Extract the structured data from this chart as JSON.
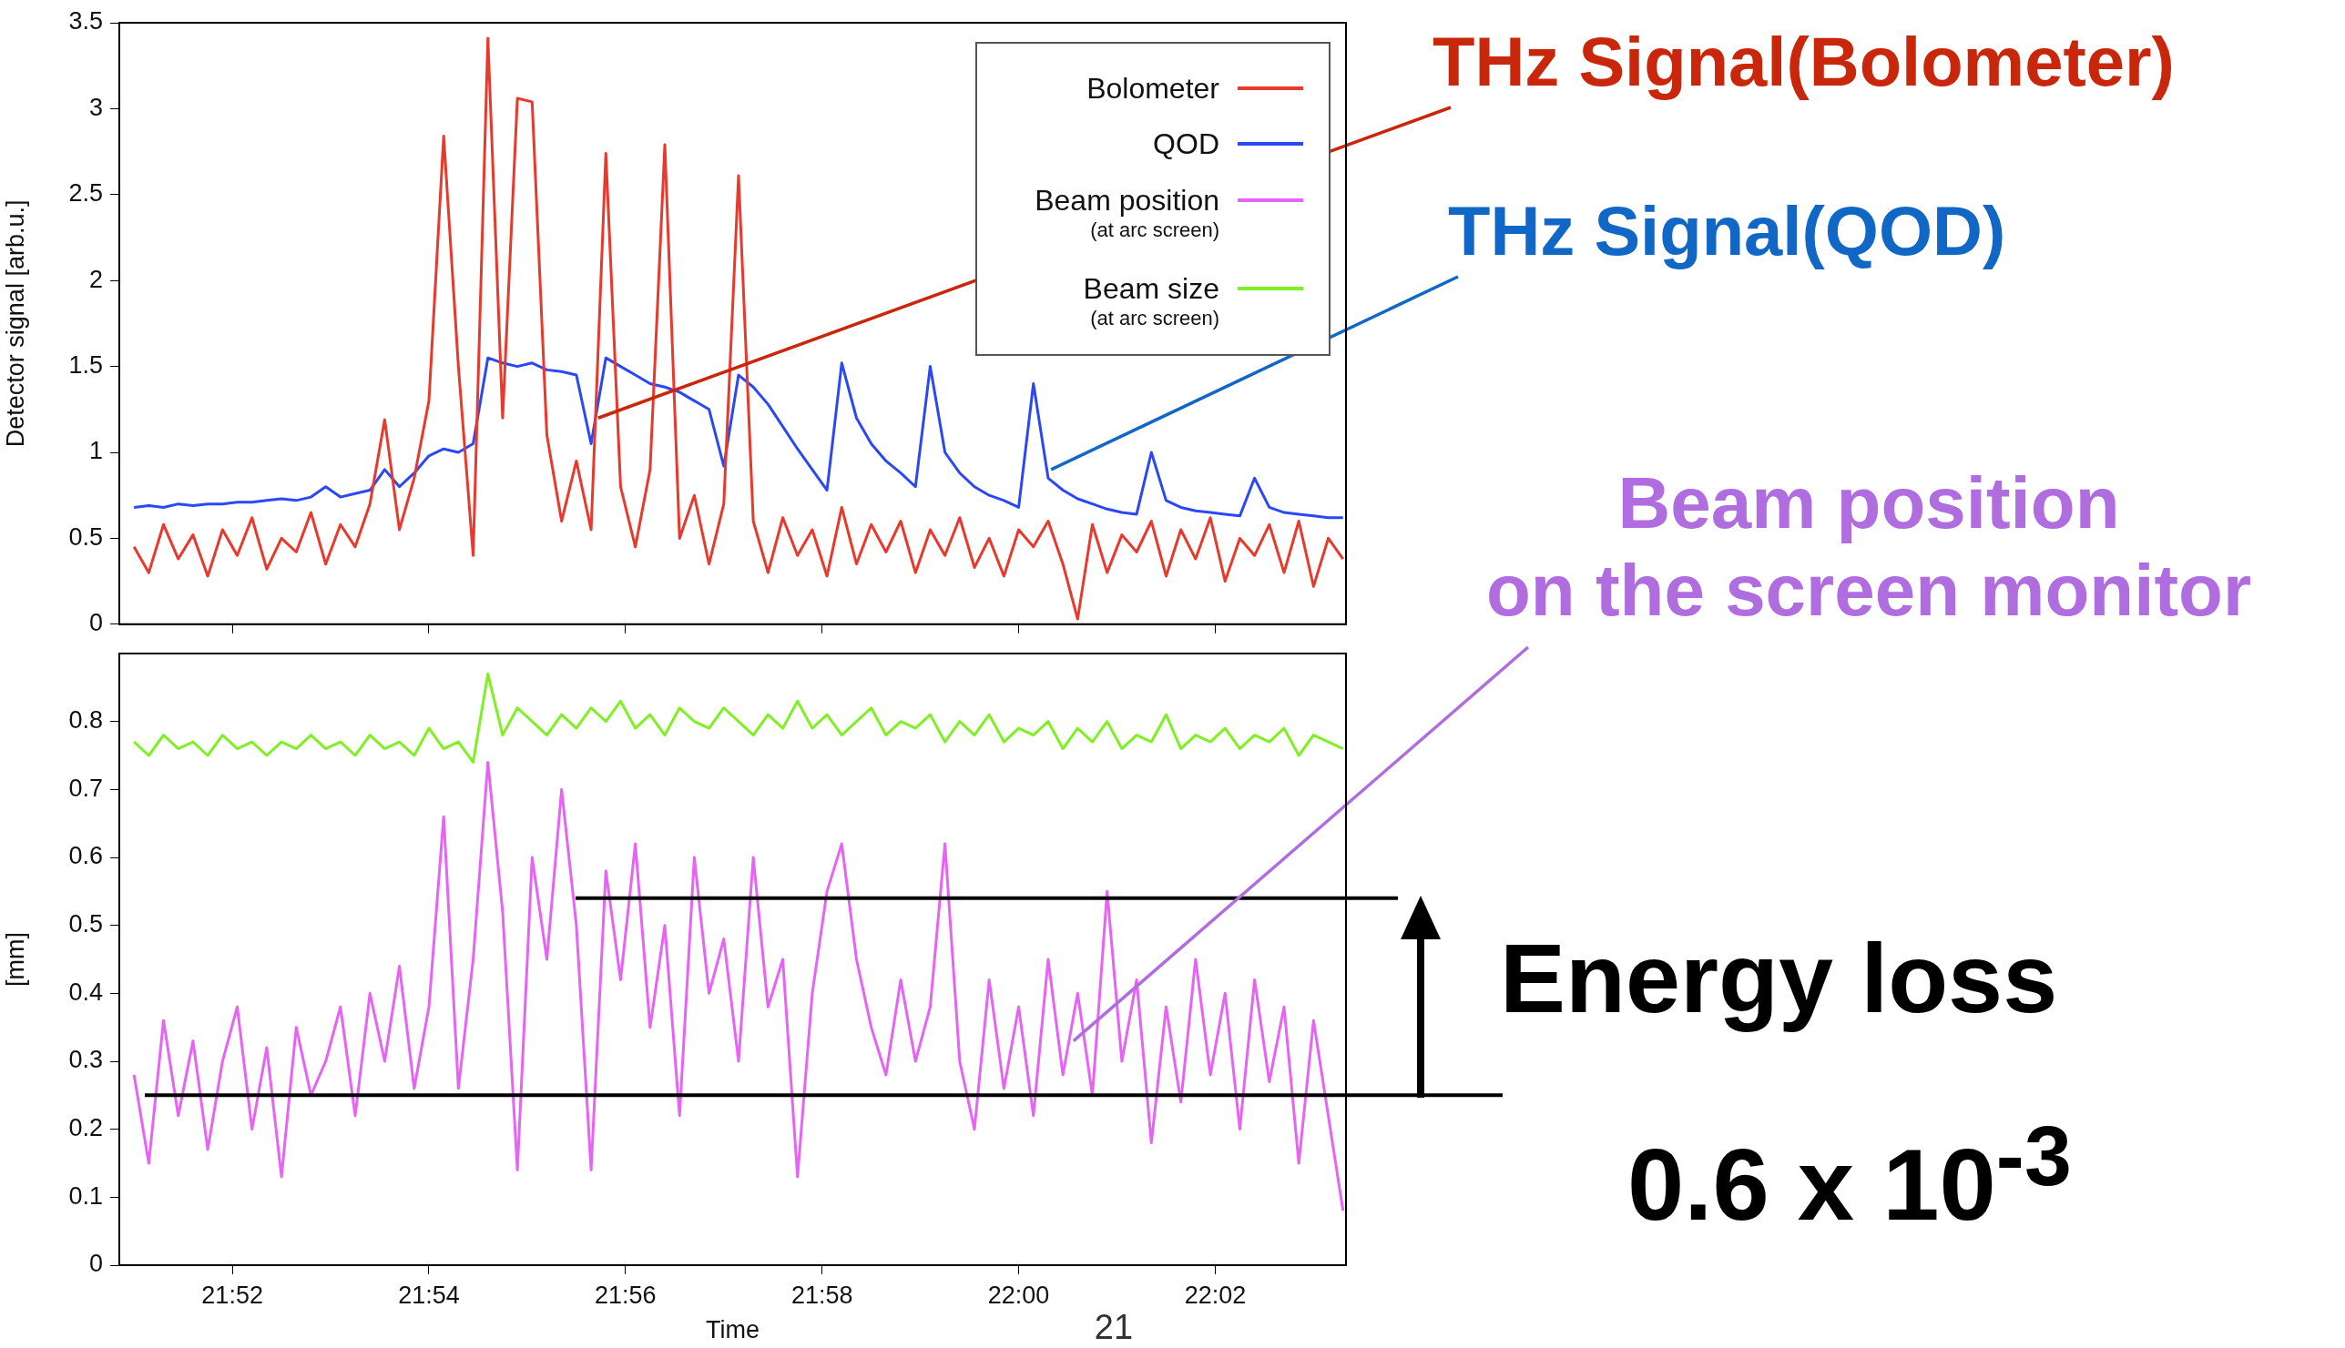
{
  "chart_data": [
    {
      "type": "line",
      "ylabel": "Detector signal [arb.u.]",
      "x": [
        21.85,
        21.8525,
        21.855,
        21.8575,
        21.86,
        21.8625,
        21.865,
        21.8675,
        21.87,
        21.8725,
        21.875,
        21.8775,
        21.88,
        21.8825,
        21.885,
        21.8875,
        21.89,
        21.8925,
        21.895,
        21.8975,
        21.9,
        21.9025,
        21.905,
        21.9075,
        21.91,
        21.9125,
        21.915,
        21.9175,
        21.92,
        21.9225,
        21.925,
        21.9275,
        21.93,
        21.9325,
        21.935,
        21.9375,
        21.94,
        21.9425,
        21.945,
        21.9475,
        21.95,
        21.9525,
        21.955,
        21.9575,
        21.96,
        21.9625,
        21.965,
        21.9675,
        21.97,
        21.9725,
        21.975,
        21.9775,
        21.98,
        21.9825,
        21.985,
        21.9875,
        21.99,
        21.9925,
        21.995,
        21.9975,
        22,
        22.0025,
        22.005,
        22.0075,
        22.01,
        22.0125,
        22.015,
        22.0175,
        22.02,
        22.0225,
        22.025,
        22.0275,
        22.03,
        22.0325,
        22.035,
        22.0375,
        22.04,
        22.0425,
        22.045,
        22.0475,
        22.05,
        22.0525,
        22.055
      ],
      "series": [
        {
          "name": "Bolometer",
          "color": "#e8392c",
          "values": [
            0.45,
            0.3,
            0.58,
            0.38,
            0.52,
            0.28,
            0.55,
            0.4,
            0.62,
            0.32,
            0.5,
            0.42,
            0.65,
            0.35,
            0.58,
            0.45,
            0.7,
            1.19,
            0.55,
            0.85,
            1.3,
            2.84,
            1.5,
            0.4,
            3.41,
            1.2,
            3.06,
            3.04,
            1.1,
            0.6,
            0.95,
            0.55,
            2.74,
            0.8,
            0.45,
            0.9,
            2.79,
            0.5,
            0.75,
            0.35,
            0.7,
            2.61,
            0.6,
            0.3,
            0.62,
            0.4,
            0.55,
            0.28,
            0.68,
            0.35,
            0.58,
            0.42,
            0.6,
            0.3,
            0.55,
            0.4,
            0.62,
            0.33,
            0.5,
            0.28,
            0.55,
            0.45,
            0.6,
            0.35,
            0.03,
            0.58,
            0.3,
            0.52,
            0.42,
            0.6,
            0.28,
            0.55,
            0.38,
            0.62,
            0.25,
            0.5,
            0.4,
            0.58,
            0.3,
            0.6,
            0.22,
            0.5,
            0.38
          ]
        },
        {
          "name": "QOD",
          "color": "#2a48f5",
          "values": [
            0.68,
            0.69,
            0.68,
            0.7,
            0.69,
            0.7,
            0.7,
            0.71,
            0.71,
            0.72,
            0.73,
            0.72,
            0.74,
            0.8,
            0.74,
            0.76,
            0.78,
            0.9,
            0.8,
            0.88,
            0.98,
            1.02,
            1.0,
            1.05,
            1.55,
            1.52,
            1.5,
            1.52,
            1.48,
            1.47,
            1.45,
            1.05,
            1.55,
            1.5,
            1.45,
            1.4,
            1.38,
            1.35,
            1.3,
            1.25,
            0.92,
            1.45,
            1.38,
            1.28,
            1.15,
            1.02,
            0.9,
            0.78,
            1.52,
            1.2,
            1.05,
            0.95,
            0.88,
            0.8,
            1.5,
            1.0,
            0.88,
            0.8,
            0.75,
            0.72,
            0.68,
            1.4,
            0.85,
            0.78,
            0.73,
            0.7,
            0.67,
            0.65,
            0.64,
            1.0,
            0.72,
            0.68,
            0.66,
            0.65,
            0.64,
            0.63,
            0.85,
            0.68,
            0.65,
            0.64,
            0.63,
            0.62,
            0.62
          ]
        }
      ],
      "xlim": [
        21.8475,
        22.0555
      ],
      "xticks": [
        {
          "value": 21.866667,
          "label": null
        },
        {
          "value": 21.9,
          "label": null
        },
        {
          "value": 21.933333,
          "label": null
        },
        {
          "value": 21.966667,
          "label": null
        },
        {
          "value": 22,
          "label": null
        },
        {
          "value": 22.033333,
          "label": null
        }
      ],
      "ylim": [
        0,
        3.5
      ],
      "yticks": [
        0,
        0.5,
        1,
        1.5,
        2,
        2.5,
        3,
        3.5
      ],
      "tick_labels": "y",
      "legend": "top right",
      "annotations": [
        {
          "text": "THz Signal(Bolometer)",
          "x": 21.9287,
          "y": 1.2
        },
        {
          "text": "THz Signal(QOD)",
          "x": 22.0055,
          "y": 0.9
        }
      ]
    },
    {
      "type": "line",
      "ylabel": "[mm]",
      "xlabel": "Time",
      "x": [
        21.85,
        21.8525,
        21.855,
        21.8575,
        21.86,
        21.8625,
        21.865,
        21.8675,
        21.87,
        21.8725,
        21.875,
        21.8775,
        21.88,
        21.8825,
        21.885,
        21.8875,
        21.89,
        21.8925,
        21.895,
        21.8975,
        21.9,
        21.9025,
        21.905,
        21.9075,
        21.91,
        21.9125,
        21.915,
        21.9175,
        21.92,
        21.9225,
        21.925,
        21.9275,
        21.93,
        21.9325,
        21.935,
        21.9375,
        21.94,
        21.9425,
        21.945,
        21.9475,
        21.95,
        21.9525,
        21.955,
        21.9575,
        21.96,
        21.9625,
        21.965,
        21.9675,
        21.97,
        21.9725,
        21.975,
        21.9775,
        21.98,
        21.9825,
        21.985,
        21.9875,
        21.99,
        21.9925,
        21.995,
        21.9975,
        22,
        22.0025,
        22.005,
        22.0075,
        22.01,
        22.0125,
        22.015,
        22.0175,
        22.02,
        22.0225,
        22.025,
        22.0275,
        22.03,
        22.0325,
        22.035,
        22.0375,
        22.04,
        22.0425,
        22.045,
        22.0475,
        22.05,
        22.0525,
        22.055
      ],
      "series": [
        {
          "name": "Beam position\n(at arc screen)",
          "color": "#e663f5",
          "values": [
            0.28,
            0.15,
            0.36,
            0.22,
            0.33,
            0.17,
            0.3,
            0.38,
            0.2,
            0.32,
            0.13,
            0.35,
            0.25,
            0.3,
            0.38,
            0.22,
            0.4,
            0.3,
            0.44,
            0.26,
            0.38,
            0.66,
            0.26,
            0.45,
            0.74,
            0.52,
            0.14,
            0.6,
            0.45,
            0.7,
            0.5,
            0.14,
            0.58,
            0.42,
            0.62,
            0.35,
            0.5,
            0.22,
            0.6,
            0.4,
            0.48,
            0.3,
            0.6,
            0.38,
            0.45,
            0.13,
            0.4,
            0.55,
            0.62,
            0.45,
            0.35,
            0.28,
            0.42,
            0.3,
            0.38,
            0.62,
            0.3,
            0.2,
            0.42,
            0.26,
            0.38,
            0.22,
            0.45,
            0.28,
            0.4,
            0.25,
            0.55,
            0.3,
            0.42,
            0.18,
            0.38,
            0.24,
            0.45,
            0.28,
            0.4,
            0.2,
            0.42,
            0.27,
            0.38,
            0.15,
            0.36,
            0.22,
            0.08
          ]
        },
        {
          "name": "Beam size\n(at arc screen)",
          "color": "#7ff023",
          "values": [
            0.77,
            0.75,
            0.78,
            0.76,
            0.77,
            0.75,
            0.78,
            0.76,
            0.77,
            0.75,
            0.77,
            0.76,
            0.78,
            0.76,
            0.77,
            0.75,
            0.78,
            0.76,
            0.77,
            0.75,
            0.79,
            0.76,
            0.77,
            0.74,
            0.87,
            0.78,
            0.82,
            0.8,
            0.78,
            0.81,
            0.79,
            0.82,
            0.8,
            0.83,
            0.79,
            0.81,
            0.78,
            0.82,
            0.8,
            0.79,
            0.82,
            0.8,
            0.78,
            0.81,
            0.79,
            0.83,
            0.79,
            0.81,
            0.78,
            0.8,
            0.82,
            0.78,
            0.8,
            0.79,
            0.81,
            0.77,
            0.8,
            0.78,
            0.81,
            0.77,
            0.79,
            0.78,
            0.8,
            0.76,
            0.79,
            0.77,
            0.8,
            0.76,
            0.78,
            0.77,
            0.81,
            0.76,
            0.78,
            0.77,
            0.79,
            0.76,
            0.78,
            0.77,
            0.79,
            0.75,
            0.78,
            0.77,
            0.76
          ]
        }
      ],
      "xlim": [
        21.8475,
        22.0555
      ],
      "xticks": [
        {
          "value": 21.866667,
          "label": "21:52"
        },
        {
          "value": 21.9,
          "label": "21:54"
        },
        {
          "value": 21.933333,
          "label": "21:56"
        },
        {
          "value": 21.966667,
          "label": "21:58"
        },
        {
          "value": 22,
          "label": "22:00"
        },
        {
          "value": 22.033333,
          "label": "22:02"
        }
      ],
      "ylim": [
        0,
        0.9
      ],
      "yticks": [
        0,
        0.1,
        0.2,
        0.3,
        0.4,
        0.5,
        0.6,
        0.7,
        0.8
      ],
      "legend": "top right",
      "ref_lines": [
        {
          "axis": "y",
          "value": 0.54,
          "color": "#000000"
        },
        {
          "axis": "y",
          "value": 0.25,
          "color": "#000000"
        }
      ],
      "annotations": [
        {
          "text": "Beam position\non the screen monitor",
          "x": 22.0093,
          "y": 0.33
        },
        "Energy loss",
        "0.6 x 10$^{-3}$",
        "21"
      ]
    }
  ]
}
